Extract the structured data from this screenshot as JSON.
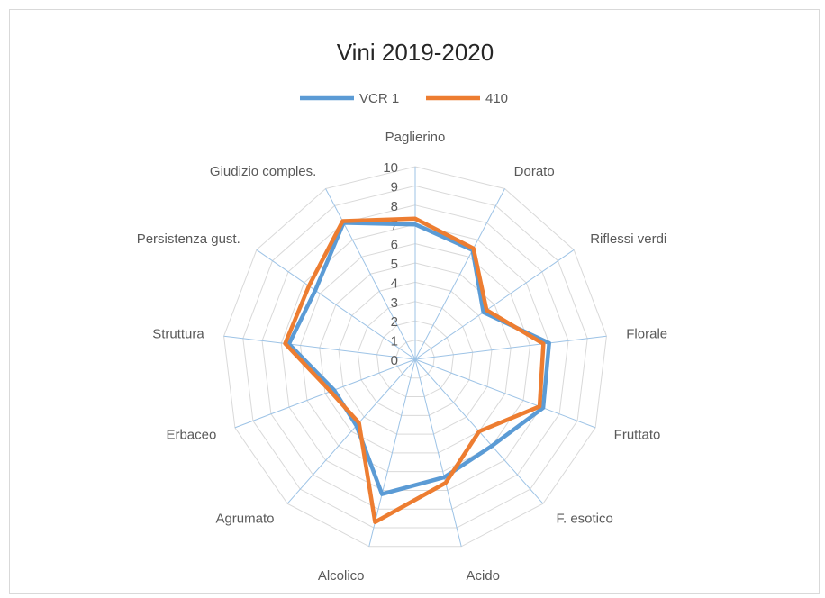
{
  "chart_data": {
    "type": "radar",
    "title": "Vini 2019-2020",
    "categories": [
      "Paglierino",
      "Dorato",
      "Riflessi verdi",
      "Florale",
      "Fruttato",
      "F. esotico",
      "Acido",
      "Alcolico",
      "Agrumato",
      "Erbaceo",
      "Struttura",
      "Persistenza gust.",
      "Giudizio comples."
    ],
    "ticks": [
      0,
      1,
      2,
      3,
      4,
      5,
      6,
      7,
      8,
      9,
      10
    ],
    "rlim": [
      0,
      10
    ],
    "grid": true,
    "legend_position": "top",
    "series": [
      {
        "name": "VCR 1",
        "color": "#5b9bd5",
        "values": [
          7.0,
          6.4,
          4.3,
          7.0,
          7.1,
          6.0,
          6.3,
          7.2,
          4.6,
          4.5,
          6.6,
          6.3,
          8.0
        ]
      },
      {
        "name": "410",
        "color": "#ed7d31",
        "values": [
          7.3,
          6.5,
          4.5,
          6.7,
          6.9,
          5.0,
          6.6,
          8.7,
          4.4,
          4.7,
          6.8,
          6.7,
          8.1
        ]
      }
    ]
  }
}
